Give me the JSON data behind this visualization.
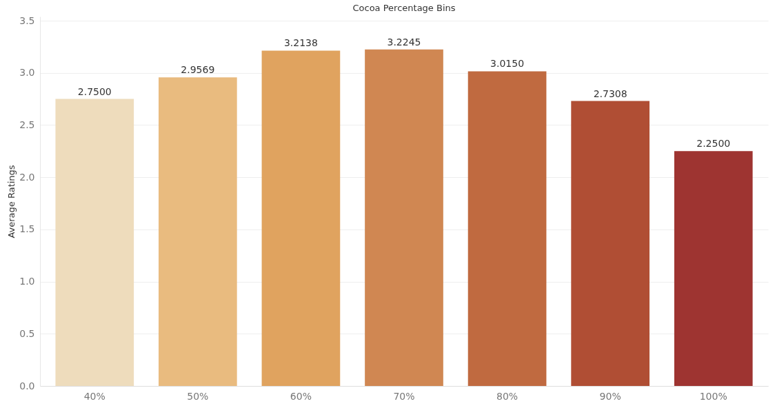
{
  "chart_data": {
    "type": "bar",
    "title": "Cocoa Percentage Bins",
    "ylabel": "Average Ratings",
    "categories": [
      "40%",
      "50%",
      "60%",
      "70%",
      "80%",
      "90%",
      "100%"
    ],
    "values": [
      2.75,
      2.9569,
      3.2138,
      3.2245,
      3.015,
      2.7308,
      2.25
    ],
    "value_labels": [
      "2.7500",
      "2.9569",
      "3.2138",
      "3.2245",
      "3.0150",
      "2.7308",
      "2.2500"
    ],
    "colors": [
      "#eedcbc",
      "#e9bb7f",
      "#e0a35f",
      "#d08752",
      "#c06a40",
      "#b04e34",
      "#9e3431"
    ],
    "ylim": [
      0,
      3.54
    ],
    "yticks": [
      {
        "value": 0,
        "label": "0.0"
      },
      {
        "value": 0.5,
        "label": "0.5"
      },
      {
        "value": 1,
        "label": "1.0"
      },
      {
        "value": 1.5,
        "label": "1.5"
      },
      {
        "value": 2,
        "label": "2.0"
      },
      {
        "value": 2.5,
        "label": "2.5"
      },
      {
        "value": 3,
        "label": "3.0"
      },
      {
        "value": 3.5,
        "label": "3.5"
      }
    ],
    "grid": "y"
  }
}
